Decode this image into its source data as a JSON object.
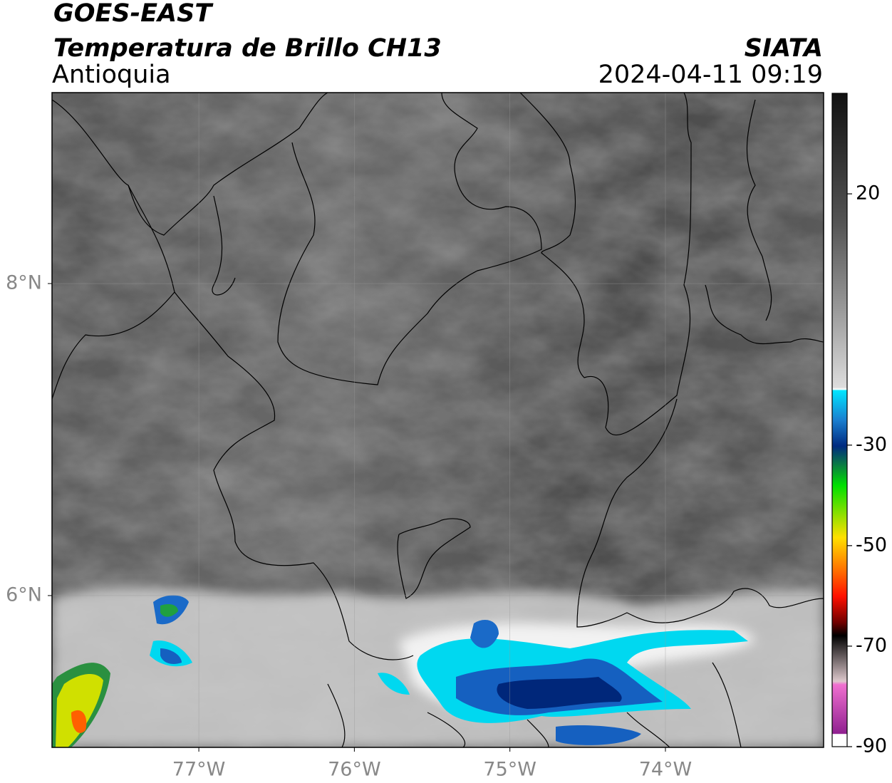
{
  "header": {
    "title": "GOES-EAST",
    "subtitle": "Temperatura de Brillo CH13",
    "region": "Antioquia",
    "source": "SIATA",
    "datetime": "2024-04-11 09:19"
  },
  "map": {
    "xlim": [
      -77.944,
      -72.983
    ],
    "ylim": [
      5.027,
      9.224
    ],
    "xticks": [
      {
        "value": -77,
        "label": "77°W"
      },
      {
        "value": -76,
        "label": "76°W"
      },
      {
        "value": -75,
        "label": "75°W"
      },
      {
        "value": -74,
        "label": "74°W"
      }
    ],
    "yticks": [
      {
        "value": 8,
        "label": "8°N"
      },
      {
        "value": 6,
        "label": "6°N"
      }
    ],
    "grid": true
  },
  "colorbar": {
    "lim": [
      -90,
      40
    ],
    "ticks": [
      20,
      -30,
      -50,
      -70,
      -90
    ]
  }
}
